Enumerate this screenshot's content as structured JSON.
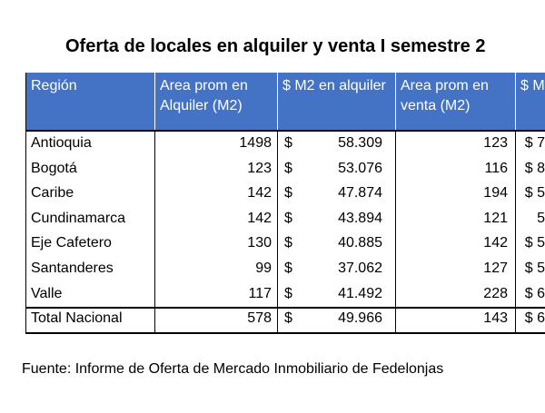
{
  "title": "Oferta de locales en alquiler y venta I semestre 2",
  "table": {
    "header": [
      "Región",
      "Area prom en Alquiler (M2)",
      "$ M2 en alquiler",
      "Area prom en venta (M2)",
      "$ M ven"
    ],
    "rows": [
      [
        "Antioquia",
        "1498",
        "$",
        "58.309",
        "123",
        "$ 7"
      ],
      [
        "Bogotá",
        "123",
        "$",
        "53.076",
        "116",
        "$ 8"
      ],
      [
        "Caribe",
        "142",
        "$",
        "47.874",
        "194",
        "$ 5"
      ],
      [
        "Cundinamarca",
        "142",
        "$",
        "43.894",
        "121",
        "5"
      ],
      [
        "Eje Cafetero",
        "130",
        "$",
        "40.885",
        "142",
        "$ 5"
      ],
      [
        "Santanderes",
        "99",
        "$",
        "37.062",
        "127",
        "$ 5"
      ],
      [
        "Valle",
        "117",
        "$",
        "41.492",
        "228",
        "$ 6"
      ],
      [
        "Total Nacional",
        "578",
        "$",
        "49.966",
        "143",
        "$ 6"
      ]
    ]
  },
  "source": "Fuente: Informe de Oferta de Mercado Inmobiliario de Fedelonjas"
}
